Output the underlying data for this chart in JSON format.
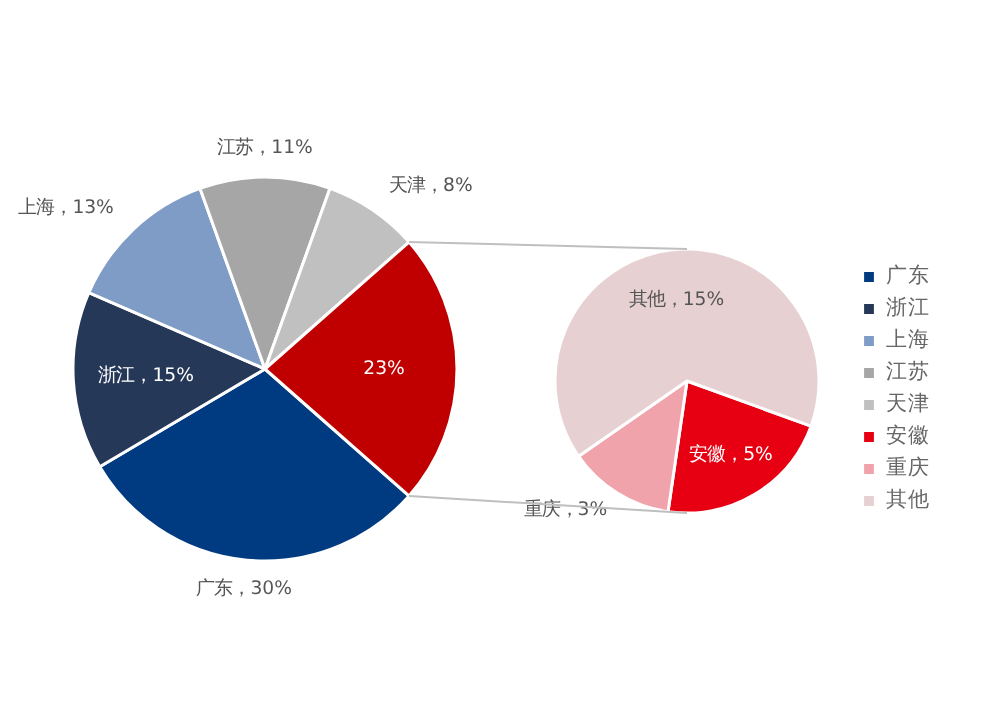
{
  "chart_data": [
    {
      "type": "pie",
      "categories": [
        "广东",
        "浙江",
        "上海",
        "江苏",
        "天津",
        null
      ],
      "values": [
        30,
        15,
        13,
        11,
        8,
        23
      ],
      "colors": [
        "#003a80",
        "#253858",
        "#7f9cc6",
        "#a6a6a6",
        "#c0c0c0",
        "#c00000"
      ],
      "value_labels": [
        "广东，30%",
        "浙江，15%",
        "上海，13%",
        "江苏，11%",
        "天津，8%",
        "23%"
      ],
      "legend": "right"
    },
    {
      "type": "pie",
      "categories": [
        "安徽",
        "重庆",
        "其他"
      ],
      "values": [
        5,
        3,
        15
      ],
      "colors": [
        "#e60012",
        "#f1a3ab",
        "#e7d0d2"
      ],
      "value_labels": [
        "安徽，5%",
        "重庆，3%",
        "其他，15%"
      ],
      "legend": "right"
    }
  ]
}
